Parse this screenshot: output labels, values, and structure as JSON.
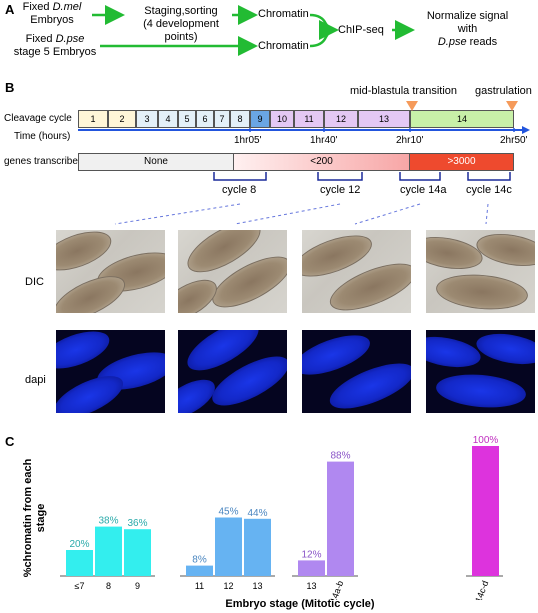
{
  "panels": {
    "A": "A",
    "B": "B",
    "C": "C"
  },
  "panelA": {
    "fixed_dmel_line1": "Fixed ",
    "fixed_dmel_species": "D.mel",
    "fixed_dmel_line2": "Embryos",
    "staging_line1": "Staging,sorting",
    "staging_line2": "(4 development points)",
    "chromatin_top": "Chromatin",
    "fixed_dpse_line1": "Fixed ",
    "fixed_dpse_species": "D.pse",
    "fixed_dpse_line2": "stage 5 Embryos",
    "chromatin_bottom": "Chromatin",
    "chipseq": "ChIP-seq",
    "normalize_line1": "Normalize signal",
    "normalize_line2": "with",
    "normalize_species": "D.pse",
    "normalize_line3": " reads"
  },
  "panelB": {
    "mbt_label": "mid-blastula transition",
    "gastrulation_label": "gastrulation",
    "cleavage_cycle_label": "Cleavage cycle",
    "time_label": "Time (hours)",
    "cycles": [
      "1",
      "2",
      "3",
      "4",
      "5",
      "6",
      "7",
      "8",
      "9",
      "10",
      "11",
      "12",
      "13",
      "14"
    ],
    "times": [
      "1hr05'",
      "1hr40'",
      "2hr10'",
      "2hr50'"
    ],
    "genes_transcribed_label": "genes transcribed",
    "transcription_levels": [
      "None",
      "<200",
      ">3000"
    ],
    "stage_brackets": [
      "cycle 8",
      "cycle 12",
      "cycle 14a",
      "cycle 14c"
    ],
    "row_labels": {
      "dic": "DIC",
      "dapi": "dapi"
    }
  },
  "chart_data": {
    "type": "bar",
    "ylabel": "%chromatin from each stage",
    "xlabel": "Embryo stage  (Mitotic cycle)",
    "groups": [
      {
        "categories": [
          "≤7",
          "8",
          "9"
        ],
        "values": [
          20,
          38,
          36
        ],
        "labels": [
          "20%",
          "38%",
          "36%"
        ],
        "color": "#33eeee",
        "label_color": "#2aaaaa"
      },
      {
        "categories": [
          "11",
          "12",
          "13"
        ],
        "values": [
          8,
          45,
          44
        ],
        "labels": [
          "8%",
          "45%",
          "44%"
        ],
        "color": "#66b3f2",
        "label_color": "#4a86c0"
      },
      {
        "categories": [
          "13",
          "14a-b"
        ],
        "values": [
          12,
          88
        ],
        "labels": [
          "12%",
          "88%"
        ],
        "color": "#b088f0",
        "label_color": "#8a55c8"
      },
      {
        "categories": [
          "14c-d"
        ],
        "values": [
          100
        ],
        "labels": [
          "100%"
        ],
        "color": "#dd33dd",
        "label_color": "#c030c0"
      }
    ],
    "ylim": [
      0,
      100
    ]
  },
  "colors": {
    "arrow_green": "#22bb33",
    "mbt_marker": "#f59a5a",
    "axis_blue": "#2255dd"
  }
}
